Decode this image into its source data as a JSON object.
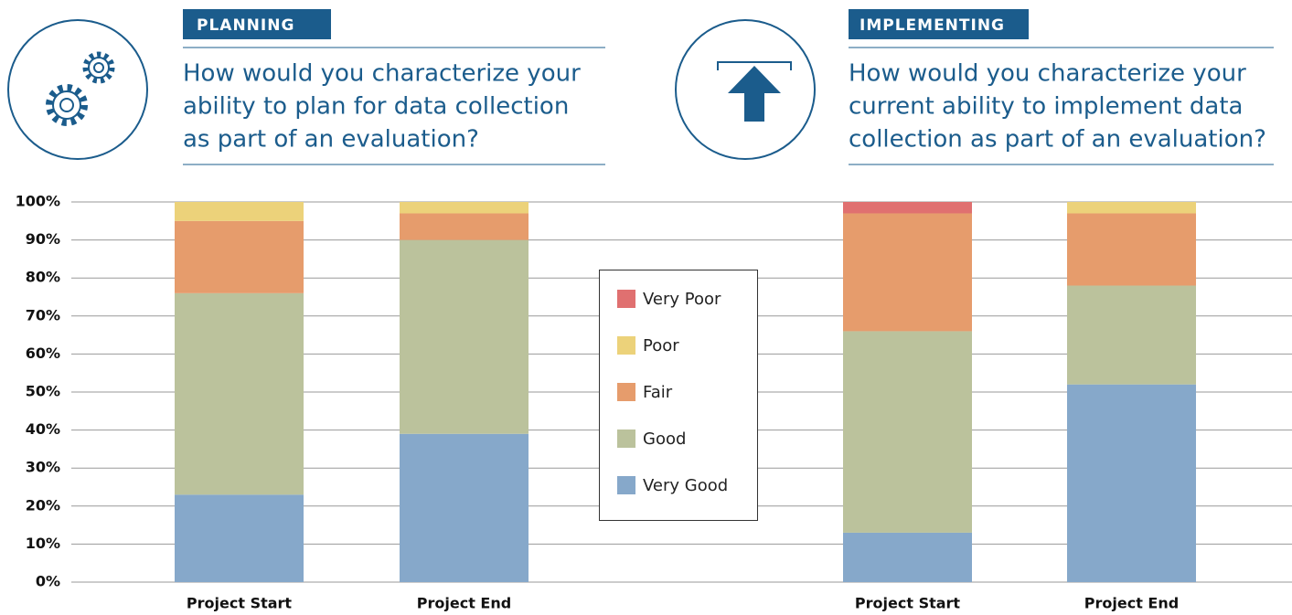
{
  "panels": [
    {
      "label": "PLANNING",
      "question_lines": [
        "How would you characterize your",
        "ability to plan for data collection",
        "as part of an evaluation?"
      ]
    },
    {
      "label": "IMPLEMENTING",
      "question_lines": [
        "How would you characterize your",
        "current ability to implement data",
        "collection as part of an evaluation?"
      ]
    }
  ],
  "chart_data": {
    "type": "stacked_bar",
    "categories": [
      "Project Start",
      "Project End",
      "Project Start",
      "Project End"
    ],
    "series": [
      {
        "name": "Very Good",
        "color": "#86a8ca",
        "values": [
          23,
          39,
          13,
          52
        ]
      },
      {
        "name": "Good",
        "color": "#bbc29c",
        "values": [
          53,
          51,
          53,
          26
        ]
      },
      {
        "name": "Fair",
        "color": "#e69c6c",
        "values": [
          19,
          7,
          31,
          19
        ]
      },
      {
        "name": "Poor",
        "color": "#ecd27a",
        "values": [
          5,
          3,
          0,
          3
        ]
      },
      {
        "name": "Very Poor",
        "color": "#e07070",
        "values": [
          0,
          0,
          3,
          0
        ]
      }
    ],
    "ylim": [
      0,
      100
    ],
    "yticks": [
      {
        "value": 0,
        "label": "0%"
      },
      {
        "value": 10,
        "label": "10%"
      },
      {
        "value": 20,
        "label": "20%"
      },
      {
        "value": 30,
        "label": "30%"
      },
      {
        "value": 40,
        "label": "40%"
      },
      {
        "value": 50,
        "label": "50%"
      },
      {
        "value": 60,
        "label": "60%"
      },
      {
        "value": 70,
        "label": "70%"
      },
      {
        "value": 80,
        "label": "80%"
      },
      {
        "value": 90,
        "label": "90%"
      },
      {
        "value": 100,
        "label": "100%"
      }
    ],
    "grid": true,
    "legend": "center"
  }
}
